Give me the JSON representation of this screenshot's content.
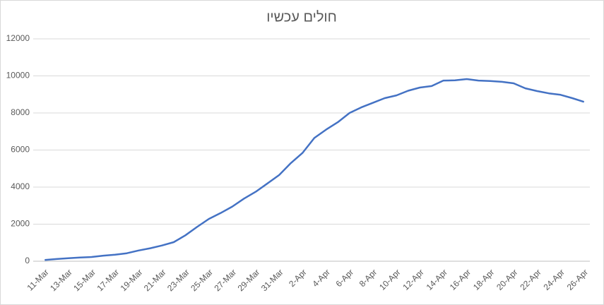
{
  "chart_data": {
    "type": "line",
    "title": "חולים עכשיו",
    "categories": [
      "11-Mar",
      null,
      "13-Mar",
      null,
      "15-Mar",
      null,
      "17-Mar",
      null,
      "19-Mar",
      null,
      "21-Mar",
      null,
      "23-Mar",
      null,
      "25-Mar",
      null,
      "27-Mar",
      null,
      "29-Mar",
      null,
      "31-Mar",
      null,
      "2-Apr",
      null,
      "4-Apr",
      null,
      "6-Apr",
      null,
      "8-Apr",
      null,
      "10-Apr",
      null,
      "12-Apr",
      null,
      "14-Apr",
      null,
      "16-Apr",
      null,
      "18-Apr",
      null,
      "20-Apr",
      null,
      "22-Apr",
      null,
      "24-Apr",
      null,
      "26-Apr"
    ],
    "values": [
      70,
      120,
      160,
      200,
      230,
      300,
      350,
      430,
      580,
      700,
      850,
      1030,
      1400,
      1850,
      2280,
      2600,
      2950,
      3380,
      3750,
      4200,
      4650,
      5300,
      5850,
      6650,
      7100,
      7500,
      8000,
      8300,
      8550,
      8800,
      8950,
      9200,
      9370,
      9450,
      9750,
      9760,
      9830,
      9750,
      9720,
      9680,
      9600,
      9330,
      9180,
      9060,
      8980,
      8800,
      8600
    ],
    "color": "#4472c4",
    "ylim": [
      0,
      12000
    ],
    "yticks": [
      0,
      2000,
      4000,
      6000,
      8000,
      10000,
      12000
    ],
    "grid": true
  }
}
